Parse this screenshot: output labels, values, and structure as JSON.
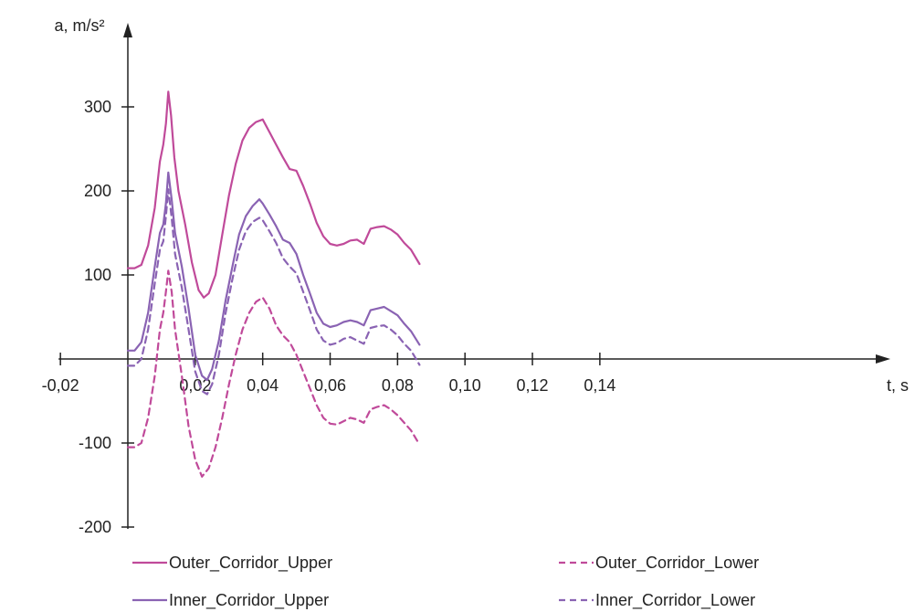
{
  "chart_data": {
    "type": "line",
    "title": "",
    "xlabel": "t, s",
    "ylabel": "a, m/s²",
    "xlim": [
      -0.02,
      0.15
    ],
    "ylim": [
      -200,
      370
    ],
    "x_ticks": [
      -0.02,
      0.02,
      0.04,
      0.06,
      0.08,
      0.1,
      0.12,
      0.14
    ],
    "x_tick_labels": [
      "-0,02",
      "0,02",
      "0,04",
      "0,06",
      "0,08",
      "0,10",
      "0,12",
      "0,14"
    ],
    "y_ticks": [
      -200,
      -100,
      100,
      200,
      300
    ],
    "y_tick_labels": [
      "-200",
      "-100",
      "100",
      "200",
      "300"
    ],
    "grid": false,
    "legend_position": "bottom",
    "series": [
      {
        "name": "Outer_Corridor_Upper",
        "color": "#c04a9a",
        "dash": "solid",
        "points": [
          [
            0.0,
            108
          ],
          [
            0.002,
            108
          ],
          [
            0.004,
            112
          ],
          [
            0.006,
            135
          ],
          [
            0.008,
            180
          ],
          [
            0.0095,
            235
          ],
          [
            0.0105,
            255
          ],
          [
            0.0113,
            280
          ],
          [
            0.012,
            318
          ],
          [
            0.0128,
            290
          ],
          [
            0.0138,
            240
          ],
          [
            0.015,
            200
          ],
          [
            0.017,
            160
          ],
          [
            0.019,
            115
          ],
          [
            0.021,
            82
          ],
          [
            0.0225,
            73
          ],
          [
            0.024,
            78
          ],
          [
            0.026,
            100
          ],
          [
            0.028,
            148
          ],
          [
            0.03,
            195
          ],
          [
            0.032,
            232
          ],
          [
            0.034,
            260
          ],
          [
            0.036,
            275
          ],
          [
            0.038,
            282
          ],
          [
            0.04,
            285
          ],
          [
            0.042,
            270
          ],
          [
            0.044,
            255
          ],
          [
            0.046,
            240
          ],
          [
            0.048,
            226
          ],
          [
            0.05,
            224
          ],
          [
            0.052,
            206
          ],
          [
            0.054,
            185
          ],
          [
            0.056,
            162
          ],
          [
            0.058,
            146
          ],
          [
            0.06,
            137
          ],
          [
            0.062,
            135
          ],
          [
            0.064,
            137
          ],
          [
            0.066,
            141
          ],
          [
            0.068,
            142
          ],
          [
            0.07,
            137
          ],
          [
            0.072,
            155
          ],
          [
            0.074,
            157
          ],
          [
            0.076,
            158
          ],
          [
            0.078,
            154
          ],
          [
            0.08,
            148
          ],
          [
            0.082,
            138
          ],
          [
            0.084,
            130
          ],
          [
            0.0865,
            113
          ]
        ]
      },
      {
        "name": "Outer_Corridor_Lower",
        "color": "#c04a9a",
        "dash": "dashed",
        "points": [
          [
            0.0,
            -105
          ],
          [
            0.002,
            -105
          ],
          [
            0.004,
            -100
          ],
          [
            0.006,
            -70
          ],
          [
            0.008,
            -20
          ],
          [
            0.0095,
            35
          ],
          [
            0.0105,
            55
          ],
          [
            0.0113,
            80
          ],
          [
            0.012,
            105
          ],
          [
            0.013,
            80
          ],
          [
            0.014,
            35
          ],
          [
            0.016,
            -20
          ],
          [
            0.018,
            -80
          ],
          [
            0.02,
            -120
          ],
          [
            0.022,
            -140
          ],
          [
            0.024,
            -130
          ],
          [
            0.026,
            -105
          ],
          [
            0.028,
            -70
          ],
          [
            0.03,
            -30
          ],
          [
            0.032,
            5
          ],
          [
            0.034,
            35
          ],
          [
            0.036,
            55
          ],
          [
            0.038,
            68
          ],
          [
            0.04,
            73
          ],
          [
            0.042,
            60
          ],
          [
            0.044,
            40
          ],
          [
            0.046,
            28
          ],
          [
            0.048,
            20
          ],
          [
            0.05,
            5
          ],
          [
            0.052,
            -15
          ],
          [
            0.054,
            -35
          ],
          [
            0.056,
            -55
          ],
          [
            0.058,
            -70
          ],
          [
            0.06,
            -77
          ],
          [
            0.062,
            -78
          ],
          [
            0.064,
            -74
          ],
          [
            0.066,
            -70
          ],
          [
            0.068,
            -72
          ],
          [
            0.07,
            -76
          ],
          [
            0.072,
            -60
          ],
          [
            0.074,
            -57
          ],
          [
            0.076,
            -55
          ],
          [
            0.078,
            -60
          ],
          [
            0.08,
            -67
          ],
          [
            0.082,
            -76
          ],
          [
            0.084,
            -85
          ],
          [
            0.0865,
            -102
          ]
        ]
      },
      {
        "name": "Inner_Corridor_Upper",
        "color": "#8a63b3",
        "dash": "solid",
        "points": [
          [
            0.0,
            10
          ],
          [
            0.002,
            10
          ],
          [
            0.004,
            20
          ],
          [
            0.006,
            55
          ],
          [
            0.008,
            110
          ],
          [
            0.0095,
            150
          ],
          [
            0.0105,
            160
          ],
          [
            0.0113,
            185
          ],
          [
            0.012,
            222
          ],
          [
            0.013,
            190
          ],
          [
            0.014,
            150
          ],
          [
            0.016,
            110
          ],
          [
            0.018,
            60
          ],
          [
            0.02,
            5
          ],
          [
            0.022,
            -20
          ],
          [
            0.0235,
            -25
          ],
          [
            0.025,
            -12
          ],
          [
            0.027,
            22
          ],
          [
            0.029,
            70
          ],
          [
            0.031,
            110
          ],
          [
            0.033,
            148
          ],
          [
            0.035,
            170
          ],
          [
            0.037,
            182
          ],
          [
            0.039,
            190
          ],
          [
            0.04,
            185
          ],
          [
            0.042,
            172
          ],
          [
            0.044,
            158
          ],
          [
            0.046,
            142
          ],
          [
            0.048,
            138
          ],
          [
            0.05,
            125
          ],
          [
            0.052,
            100
          ],
          [
            0.054,
            78
          ],
          [
            0.056,
            55
          ],
          [
            0.058,
            42
          ],
          [
            0.06,
            38
          ],
          [
            0.062,
            40
          ],
          [
            0.064,
            44
          ],
          [
            0.066,
            46
          ],
          [
            0.068,
            44
          ],
          [
            0.07,
            40
          ],
          [
            0.072,
            58
          ],
          [
            0.074,
            60
          ],
          [
            0.076,
            62
          ],
          [
            0.078,
            57
          ],
          [
            0.08,
            52
          ],
          [
            0.082,
            42
          ],
          [
            0.084,
            33
          ],
          [
            0.0865,
            17
          ]
        ]
      },
      {
        "name": "Inner_Corridor_Lower",
        "color": "#8a63b3",
        "dash": "dashed",
        "points": [
          [
            0.0,
            -8
          ],
          [
            0.002,
            -8
          ],
          [
            0.004,
            0
          ],
          [
            0.006,
            35
          ],
          [
            0.008,
            90
          ],
          [
            0.0095,
            130
          ],
          [
            0.0105,
            140
          ],
          [
            0.0113,
            170
          ],
          [
            0.012,
            202
          ],
          [
            0.013,
            168
          ],
          [
            0.014,
            125
          ],
          [
            0.016,
            85
          ],
          [
            0.018,
            35
          ],
          [
            0.02,
            -15
          ],
          [
            0.022,
            -38
          ],
          [
            0.0235,
            -42
          ],
          [
            0.025,
            -30
          ],
          [
            0.027,
            5
          ],
          [
            0.029,
            55
          ],
          [
            0.031,
            95
          ],
          [
            0.033,
            130
          ],
          [
            0.035,
            152
          ],
          [
            0.037,
            163
          ],
          [
            0.039,
            168
          ],
          [
            0.04,
            165
          ],
          [
            0.042,
            152
          ],
          [
            0.044,
            138
          ],
          [
            0.046,
            120
          ],
          [
            0.048,
            110
          ],
          [
            0.05,
            102
          ],
          [
            0.052,
            80
          ],
          [
            0.054,
            58
          ],
          [
            0.056,
            35
          ],
          [
            0.058,
            22
          ],
          [
            0.06,
            17
          ],
          [
            0.062,
            19
          ],
          [
            0.064,
            24
          ],
          [
            0.066,
            26
          ],
          [
            0.068,
            22
          ],
          [
            0.07,
            18
          ],
          [
            0.072,
            37
          ],
          [
            0.074,
            39
          ],
          [
            0.076,
            40
          ],
          [
            0.078,
            35
          ],
          [
            0.08,
            28
          ],
          [
            0.082,
            18
          ],
          [
            0.084,
            10
          ],
          [
            0.0865,
            -7
          ]
        ]
      }
    ]
  }
}
